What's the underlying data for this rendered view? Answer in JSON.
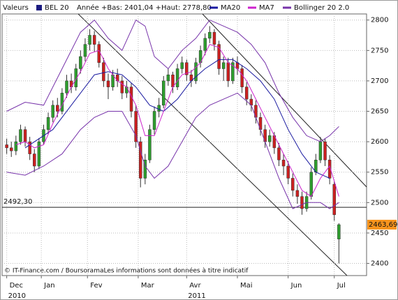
{
  "chart_data": {
    "type": "candlestick",
    "header_label": "Valeurs",
    "name": "BEL 20",
    "name_color": "#1a1a80",
    "stats": "Année +Bas: 2401,04 +Haut: 2778,80",
    "footer": "© IT-Finance.com / BoursoramaLes informations sont données à titre indicatif",
    "up_color": "#2e9e2e",
    "down_color": "#cc2020",
    "x": [
      0,
      1,
      2,
      3,
      4,
      5,
      6,
      7,
      8,
      9,
      10,
      11,
      12,
      13,
      14,
      15,
      16,
      17,
      18,
      19,
      20,
      21,
      22,
      23,
      24,
      25,
      26,
      27,
      28,
      29,
      30,
      31,
      32,
      33,
      34,
      35,
      36,
      37,
      38,
      39,
      40,
      41,
      42,
      43,
      44,
      45,
      46,
      47,
      48,
      49,
      50,
      51,
      52,
      53,
      54,
      55,
      56,
      57,
      58,
      59,
      60,
      61,
      62,
      63,
      64,
      65,
      66,
      67,
      68,
      69,
      70,
      71,
      72
    ],
    "open": [
      2595,
      2590,
      2585,
      2600,
      2620,
      2600,
      2580,
      2560,
      2600,
      2620,
      2640,
      2660,
      2650,
      2680,
      2700,
      2690,
      2720,
      2740,
      2760,
      2775,
      2760,
      2730,
      2700,
      2690,
      2710,
      2700,
      2680,
      2690,
      2650,
      2600,
      2540,
      2570,
      2620,
      2650,
      2660,
      2700,
      2710,
      2690,
      2720,
      2730,
      2710,
      2700,
      2730,
      2750,
      2770,
      2780,
      2760,
      2720,
      2730,
      2700,
      2730,
      2720,
      2690,
      2670,
      2660,
      2640,
      2620,
      2600,
      2610,
      2590,
      2570,
      2560,
      2540,
      2520,
      2510,
      2490,
      2510,
      2550,
      2570,
      2600,
      2570,
      2530,
      2440
    ],
    "high": [
      2605,
      2600,
      2610,
      2628,
      2625,
      2608,
      2588,
      2606,
      2628,
      2648,
      2668,
      2672,
      2688,
      2710,
      2712,
      2728,
      2750,
      2770,
      2785,
      2782,
      2765,
      2738,
      2712,
      2718,
      2720,
      2708,
      2700,
      2696,
      2660,
      2608,
      2580,
      2628,
      2658,
      2672,
      2708,
      2720,
      2715,
      2728,
      2740,
      2735,
      2718,
      2738,
      2758,
      2778,
      2790,
      2785,
      2766,
      2740,
      2738,
      2738,
      2740,
      2726,
      2698,
      2678,
      2668,
      2648,
      2628,
      2620,
      2616,
      2598,
      2580,
      2568,
      2548,
      2530,
      2518,
      2518,
      2558,
      2580,
      2608,
      2605,
      2578,
      2535,
      2466
    ],
    "low": [
      2580,
      2575,
      2578,
      2595,
      2592,
      2570,
      2550,
      2555,
      2595,
      2612,
      2632,
      2640,
      2645,
      2672,
      2680,
      2684,
      2712,
      2732,
      2750,
      2748,
      2722,
      2690,
      2670,
      2684,
      2690,
      2670,
      2672,
      2640,
      2590,
      2525,
      2530,
      2565,
      2612,
      2640,
      2655,
      2692,
      2680,
      2685,
      2712,
      2700,
      2690,
      2695,
      2722,
      2742,
      2762,
      2750,
      2710,
      2700,
      2690,
      2695,
      2710,
      2680,
      2660,
      2650,
      2630,
      2610,
      2590,
      2592,
      2580,
      2560,
      2545,
      2530,
      2510,
      2498,
      2480,
      2485,
      2505,
      2545,
      2565,
      2560,
      2530,
      2470,
      2400
    ],
    "close": [
      2590,
      2585,
      2600,
      2620,
      2600,
      2580,
      2560,
      2600,
      2620,
      2640,
      2660,
      2650,
      2680,
      2700,
      2690,
      2720,
      2740,
      2760,
      2775,
      2760,
      2730,
      2700,
      2690,
      2710,
      2700,
      2680,
      2690,
      2650,
      2600,
      2540,
      2570,
      2620,
      2650,
      2660,
      2700,
      2710,
      2690,
      2720,
      2730,
      2710,
      2700,
      2730,
      2750,
      2770,
      2780,
      2760,
      2720,
      2730,
      2700,
      2730,
      2720,
      2690,
      2670,
      2660,
      2640,
      2620,
      2600,
      2610,
      2590,
      2570,
      2560,
      2540,
      2520,
      2510,
      2490,
      2510,
      2550,
      2570,
      2600,
      2570,
      2540,
      2480,
      2463.69
    ],
    "indicators": [
      {
        "name": "MA20",
        "color": "#1a1aa0",
        "x": [
          4,
          10,
          14,
          19,
          22,
          25,
          28,
          31,
          34,
          37,
          40,
          43,
          46,
          49,
          52,
          55,
          58,
          61,
          64,
          67,
          70
        ],
        "values": [
          2590,
          2620,
          2660,
          2710,
          2715,
          2710,
          2690,
          2660,
          2650,
          2670,
          2700,
          2720,
          2735,
          2735,
          2720,
          2700,
          2670,
          2620,
          2580,
          2550,
          2540
        ]
      },
      {
        "name": "MA7",
        "color": "#cc22cc",
        "x": [
          2,
          4,
          6,
          8,
          10,
          12,
          14,
          16,
          18,
          20,
          22,
          24,
          26,
          28,
          30,
          32,
          34,
          36,
          38,
          40,
          42,
          44,
          46,
          48,
          50,
          52,
          54,
          56,
          58,
          60,
          62,
          64,
          66,
          68,
          70,
          72
        ],
        "values": [
          2595,
          2600,
          2590,
          2595,
          2630,
          2660,
          2690,
          2715,
          2745,
          2750,
          2720,
          2700,
          2690,
          2660,
          2610,
          2610,
          2650,
          2690,
          2710,
          2715,
          2730,
          2760,
          2755,
          2730,
          2720,
          2700,
          2670,
          2640,
          2610,
          2580,
          2550,
          2520,
          2510,
          2540,
          2560,
          2510
        ]
      },
      {
        "name": "Bollinger 20 2.0",
        "color": "#7733aa",
        "x": [
          0,
          4,
          8,
          12,
          16,
          19,
          22,
          25,
          28,
          30,
          32,
          35,
          38,
          41,
          44,
          47,
          50,
          53,
          56,
          59,
          62,
          65,
          68,
          70,
          72
        ],
        "values": [
          2650,
          2665,
          2660,
          2720,
          2780,
          2800,
          2770,
          2750,
          2800,
          2790,
          2740,
          2720,
          2750,
          2770,
          2800,
          2790,
          2780,
          2760,
          2730,
          2680,
          2640,
          2610,
          2600,
          2610,
          2625
        ],
        "lower": [
          2550,
          2545,
          2560,
          2580,
          2620,
          2640,
          2650,
          2650,
          2610,
          2560,
          2540,
          2560,
          2600,
          2640,
          2660,
          2670,
          2680,
          2660,
          2600,
          2540,
          2490,
          2500,
          2500,
          2490,
          2500
        ]
      }
    ],
    "reference_line": {
      "value": 2492.3,
      "label": "2492,30"
    },
    "last_price": {
      "value": 2463.69,
      "label": "2463,69",
      "color": "#f7941d"
    },
    "ylim": [
      2380,
      2810
    ],
    "yticks": [
      2400,
      2450,
      2500,
      2550,
      2600,
      2650,
      2700,
      2750,
      2800
    ],
    "xlim": [
      -1,
      78
    ],
    "xticks": [
      {
        "value": 0,
        "label": "Dec"
      },
      {
        "value": 7.5,
        "label": "Jan"
      },
      {
        "value": 17.5,
        "label": "Fev"
      },
      {
        "value": 28.5,
        "label": "Mar"
      },
      {
        "value": 39,
        "label": "Avr"
      },
      {
        "value": 50,
        "label": "Mai"
      },
      {
        "value": 61,
        "label": "Jun"
      },
      {
        "value": 71,
        "label": "Jul"
      }
    ],
    "year_labels": [
      {
        "value": 0,
        "label": "2010"
      },
      {
        "value": 39,
        "label": "2011"
      }
    ],
    "grid": true
  }
}
